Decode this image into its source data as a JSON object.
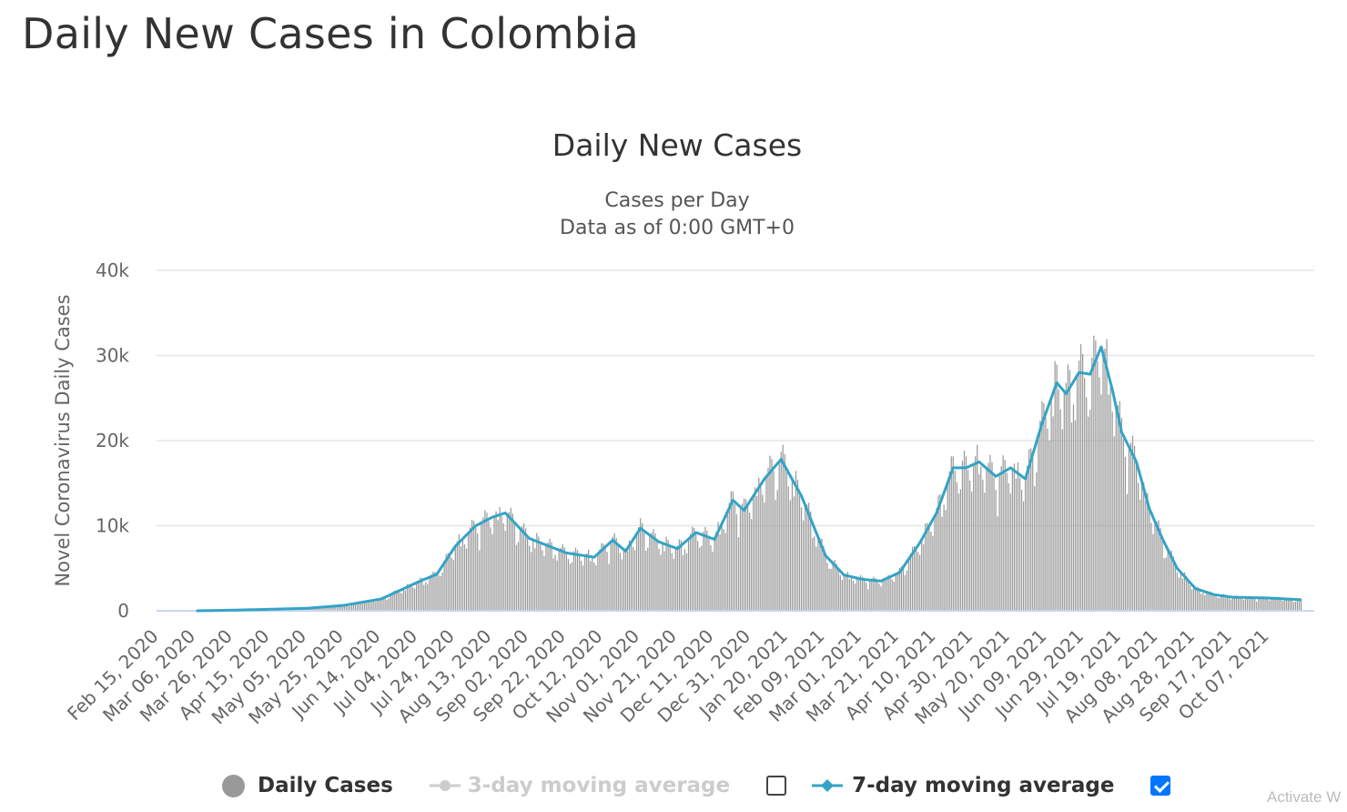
{
  "page": {
    "title": "Daily New Cases in Colombia",
    "watermark": "Activate W"
  },
  "legend": {
    "items": [
      {
        "label": "Daily Cases",
        "color": "#999999",
        "marker": "circle",
        "active": true,
        "checkbox": null
      },
      {
        "label": "3-day moving average",
        "color": "#cccccc",
        "marker": "line-circle",
        "active": false,
        "checkbox": false
      },
      {
        "label": "7-day moving average",
        "color": "#33a3c6",
        "marker": "line-diamond",
        "active": true,
        "checkbox": true
      }
    ]
  },
  "chart_data": {
    "type": "bar",
    "title": "Daily New Cases",
    "subtitle": [
      "Cases per Day",
      "Data as of 0:00 GMT+0"
    ],
    "ylabel": "Novel Coronavirus Daily Cases",
    "ylim": [
      0,
      40000
    ],
    "yticks": [
      0,
      10000,
      20000,
      30000,
      40000
    ],
    "ytick_labels": [
      "0",
      "10k",
      "20k",
      "30k",
      "40k"
    ],
    "x_start": "Feb 15, 2020",
    "xtick_labels": [
      "Feb 15, 2020",
      "Mar 06, 2020",
      "Mar 26, 2020",
      "Apr 15, 2020",
      "May 05, 2020",
      "May 25, 2020",
      "Jun 14, 2020",
      "Jul 04, 2020",
      "Jul 24, 2020",
      "Aug 13, 2020",
      "Sep 02, 2020",
      "Sep 22, 2020",
      "Oct 12, 2020",
      "Nov 01, 2020",
      "Nov 21, 2020",
      "Dec 11, 2020",
      "Dec 31, 2020",
      "Jan 20, 2021",
      "Feb 09, 2021",
      "Mar 01, 2021",
      "Mar 21, 2021",
      "Apr 10, 2021",
      "Apr 30, 2021",
      "May 20, 2021",
      "Jun 09, 2021",
      "Jun 29, 2021",
      "Jul 19, 2021",
      "Aug 08, 2021",
      "Aug 28, 2021",
      "Sep 17, 2021",
      "Oct 07, 2021"
    ],
    "grid": true,
    "series": [
      {
        "name": "Daily Cases",
        "type": "bar",
        "color": "#999999",
        "keypoints": [
          [
            "Mar 06, 2020",
            0
          ],
          [
            "Mar 26, 2020",
            80
          ],
          [
            "Apr 15, 2020",
            180
          ],
          [
            "May 05, 2020",
            300
          ],
          [
            "May 25, 2020",
            650
          ],
          [
            "Jun 14, 2020",
            1400
          ],
          [
            "Jul 04, 2020",
            3400
          ],
          [
            "Jul 14, 2020",
            4300
          ],
          [
            "Jul 24, 2020",
            7600
          ],
          [
            "Aug 04, 2020",
            10000
          ],
          [
            "Aug 13, 2020",
            11000
          ],
          [
            "Aug 20, 2020",
            11500
          ],
          [
            "Sep 02, 2020",
            8500
          ],
          [
            "Sep 22, 2020",
            6800
          ],
          [
            "Oct 07, 2020",
            6300
          ],
          [
            "Oct 17, 2020",
            8300
          ],
          [
            "Oct 24, 2020",
            7000
          ],
          [
            "Nov 01, 2020",
            9700
          ],
          [
            "Nov 11, 2020",
            8100
          ],
          [
            "Nov 21, 2020",
            7300
          ],
          [
            "Dec 01, 2020",
            9200
          ],
          [
            "Dec 11, 2020",
            8400
          ],
          [
            "Dec 21, 2020",
            13000
          ],
          [
            "Dec 27, 2020",
            11800
          ],
          [
            "Jan 07, 2021",
            15500
          ],
          [
            "Jan 16, 2021",
            17800
          ],
          [
            "Jan 27, 2021",
            13500
          ],
          [
            "Feb 09, 2021",
            6500
          ],
          [
            "Feb 19, 2021",
            4200
          ],
          [
            "Mar 01, 2021",
            3700
          ],
          [
            "Mar 11, 2021",
            3500
          ],
          [
            "Mar 21, 2021",
            4500
          ],
          [
            "Apr 01, 2021",
            8000
          ],
          [
            "Apr 10, 2021",
            11500
          ],
          [
            "Apr 19, 2021",
            16800
          ],
          [
            "Apr 26, 2021",
            16800
          ],
          [
            "May 03, 2021",
            17500
          ],
          [
            "May 12, 2021",
            15800
          ],
          [
            "May 20, 2021",
            16800
          ],
          [
            "May 28, 2021",
            15500
          ],
          [
            "Jun 06, 2021",
            22000
          ],
          [
            "Jun 14, 2021",
            26800
          ],
          [
            "Jun 19, 2021",
            25500
          ],
          [
            "Jun 26, 2021",
            28000
          ],
          [
            "Jul 02, 2021",
            27800
          ],
          [
            "Jul 08, 2021",
            31000
          ],
          [
            "Jul 14, 2021",
            26000
          ],
          [
            "Jul 19, 2021",
            21000
          ],
          [
            "Jul 27, 2021",
            17500
          ],
          [
            "Aug 03, 2021",
            12000
          ],
          [
            "Aug 10, 2021",
            8500
          ],
          [
            "Aug 18, 2021",
            5000
          ],
          [
            "Aug 28, 2021",
            2600
          ],
          [
            "Sep 07, 2021",
            1900
          ],
          [
            "Sep 17, 2021",
            1600
          ],
          [
            "Oct 07, 2021",
            1500
          ],
          [
            "Oct 24, 2021",
            1300
          ]
        ]
      },
      {
        "name": "7-day moving average",
        "type": "line",
        "color": "#33a3c6",
        "keypoints": [
          [
            "Mar 06, 2020",
            0
          ],
          [
            "Mar 26, 2020",
            80
          ],
          [
            "Apr 15, 2020",
            180
          ],
          [
            "May 05, 2020",
            300
          ],
          [
            "May 25, 2020",
            650
          ],
          [
            "Jun 14, 2020",
            1400
          ],
          [
            "Jul 04, 2020",
            3400
          ],
          [
            "Jul 14, 2020",
            4300
          ],
          [
            "Jul 24, 2020",
            7600
          ],
          [
            "Aug 04, 2020",
            10000
          ],
          [
            "Aug 13, 2020",
            11000
          ],
          [
            "Aug 20, 2020",
            11500
          ],
          [
            "Sep 02, 2020",
            8500
          ],
          [
            "Sep 22, 2020",
            6800
          ],
          [
            "Oct 07, 2020",
            6300
          ],
          [
            "Oct 17, 2020",
            8300
          ],
          [
            "Oct 24, 2020",
            7000
          ],
          [
            "Nov 01, 2020",
            9700
          ],
          [
            "Nov 11, 2020",
            8100
          ],
          [
            "Nov 21, 2020",
            7300
          ],
          [
            "Dec 01, 2020",
            9200
          ],
          [
            "Dec 11, 2020",
            8400
          ],
          [
            "Dec 21, 2020",
            13000
          ],
          [
            "Dec 27, 2020",
            11800
          ],
          [
            "Jan 07, 2021",
            15500
          ],
          [
            "Jan 16, 2021",
            17800
          ],
          [
            "Jan 27, 2021",
            13500
          ],
          [
            "Feb 09, 2021",
            6500
          ],
          [
            "Feb 19, 2021",
            4200
          ],
          [
            "Mar 01, 2021",
            3700
          ],
          [
            "Mar 11, 2021",
            3500
          ],
          [
            "Mar 21, 2021",
            4500
          ],
          [
            "Apr 01, 2021",
            8000
          ],
          [
            "Apr 10, 2021",
            11500
          ],
          [
            "Apr 19, 2021",
            16800
          ],
          [
            "Apr 26, 2021",
            16800
          ],
          [
            "May 03, 2021",
            17500
          ],
          [
            "May 12, 2021",
            15800
          ],
          [
            "May 20, 2021",
            16800
          ],
          [
            "May 28, 2021",
            15500
          ],
          [
            "Jun 06, 2021",
            22000
          ],
          [
            "Jun 14, 2021",
            26800
          ],
          [
            "Jun 19, 2021",
            25500
          ],
          [
            "Jun 26, 2021",
            28000
          ],
          [
            "Jul 02, 2021",
            27800
          ],
          [
            "Jul 08, 2021",
            31000
          ],
          [
            "Jul 14, 2021",
            26000
          ],
          [
            "Jul 19, 2021",
            21000
          ],
          [
            "Jul 27, 2021",
            17500
          ],
          [
            "Aug 03, 2021",
            12000
          ],
          [
            "Aug 10, 2021",
            8500
          ],
          [
            "Aug 18, 2021",
            5000
          ],
          [
            "Aug 28, 2021",
            2600
          ],
          [
            "Sep 07, 2021",
            1900
          ],
          [
            "Sep 17, 2021",
            1600
          ],
          [
            "Oct 07, 2021",
            1500
          ],
          [
            "Oct 24, 2021",
            1300
          ]
        ]
      }
    ]
  }
}
